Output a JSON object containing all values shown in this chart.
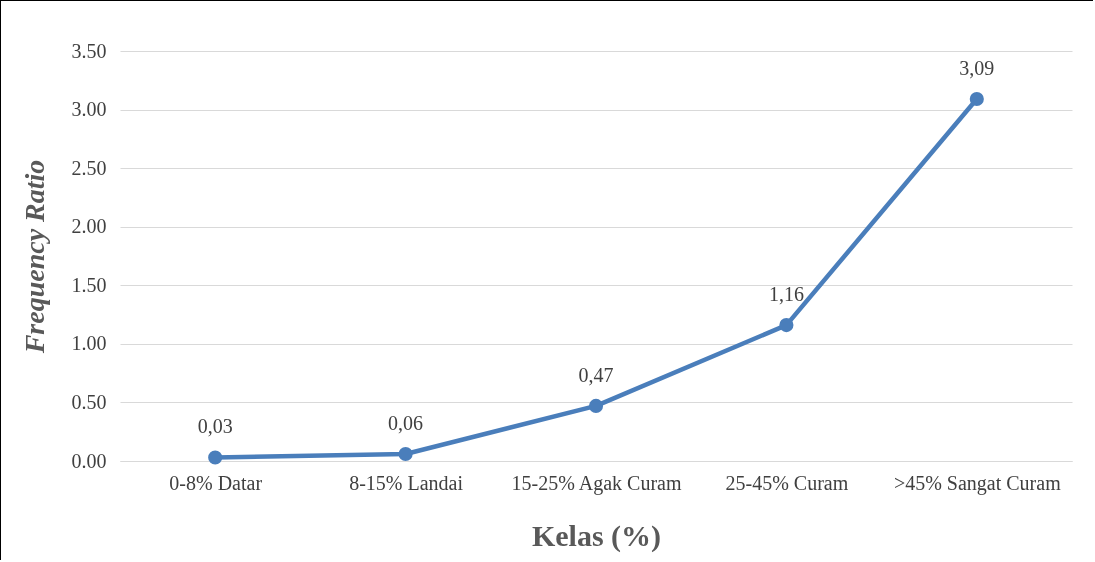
{
  "chart_data": {
    "type": "line",
    "xlabel": "Kelas (%)",
    "ylabel": "Frequency Ratio",
    "categories": [
      "0-8% Datar",
      "8-15% Landai",
      "15-25% Agak Curam",
      "25-45% Curam",
      ">45% Sangat Curam"
    ],
    "series": [
      {
        "color": "#4a7ebb",
        "values": [
          0.03,
          0.06,
          0.47,
          1.16,
          3.09
        ],
        "value_labels": [
          "0,03",
          "0,06",
          "0,47",
          "1,16",
          "3,09"
        ]
      }
    ],
    "ylim": [
      0,
      3.5
    ],
    "yticks": [
      {
        "value": 0,
        "label": "0.00"
      },
      {
        "value": 0.5,
        "label": "0.50"
      },
      {
        "value": 1,
        "label": "1.00"
      },
      {
        "value": 1.5,
        "label": "1.50"
      },
      {
        "value": 2,
        "label": "2.00"
      },
      {
        "value": 2.5,
        "label": "2.50"
      },
      {
        "value": 3,
        "label": "3.00"
      },
      {
        "value": 3.5,
        "label": "3.50"
      }
    ],
    "grid": "y",
    "marker": "circle",
    "line_style": "solid",
    "legend": false
  }
}
